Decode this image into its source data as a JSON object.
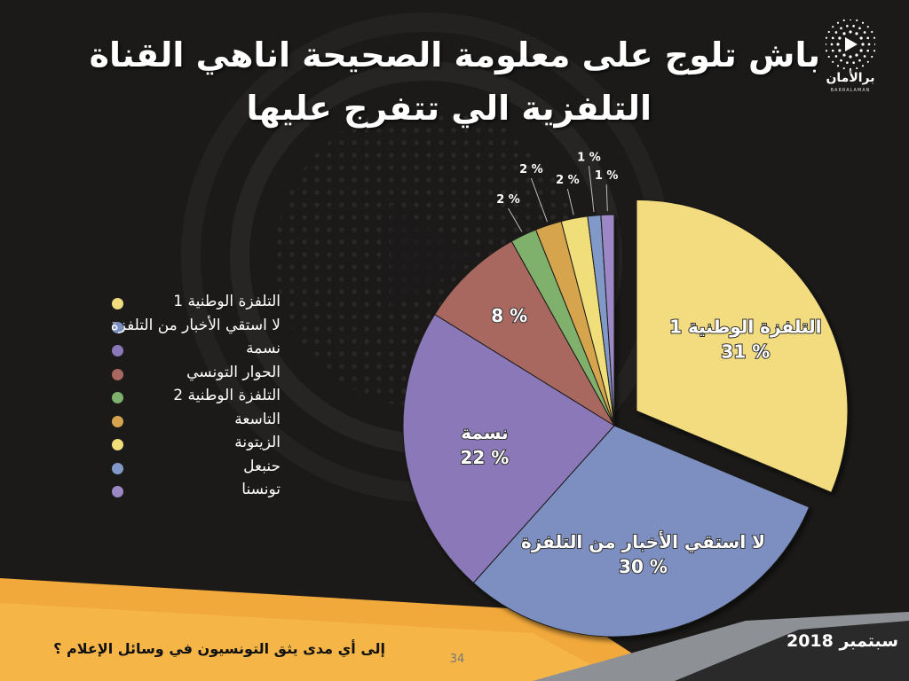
{
  "title_line_1": "باش تلوج على معلومة الصحيحة اناهي القناة",
  "title_line_2": "التلفزية الي تتفرج عليها",
  "logo": {
    "name": "برالأمان",
    "subtitle": "BARRALAMAN",
    "icon": "play-circle-dots-icon"
  },
  "footer": {
    "question": "إلى أي مدى يثق التونسيون في وسائل الإعلام ؟",
    "page_number": "34",
    "date": "سبتمبر 2018"
  },
  "colors": {
    "background": "#1b1a19",
    "footer_orange": "#f2a93b",
    "footer_gray": "#8d9196",
    "text": "#ffffff"
  },
  "chart_data": {
    "type": "pie",
    "title": "",
    "unit": "%",
    "legend_position": "left",
    "slices": [
      {
        "label": "التلفزة الوطنية 1",
        "value": 31,
        "color": "#f2dc7f",
        "value_label": "31 %",
        "show_name": true,
        "exploded": true
      },
      {
        "label": "لا استقي الأخبار من التلفزة",
        "value": 30,
        "color": "#7c8fc0",
        "value_label": "30 %",
        "show_name": true,
        "exploded": false
      },
      {
        "label": "نسمة",
        "value": 22,
        "color": "#8a78b8",
        "value_label": "22 %",
        "show_name": true,
        "exploded": false
      },
      {
        "label": "الحوار التونسي",
        "value": 8,
        "color": "#a8685f",
        "value_label": "8 %",
        "show_name": false,
        "exploded": false
      },
      {
        "label": "التلفزة الوطنية 2",
        "value": 2,
        "color": "#7fb06c",
        "value_label": "2 %",
        "show_name": false,
        "exploded": false
      },
      {
        "label": "التاسعة",
        "value": 2,
        "color": "#d6a44e",
        "value_label": "2 %",
        "show_name": false,
        "exploded": false
      },
      {
        "label": "الزيتونة",
        "value": 2,
        "color": "#f0de7a",
        "value_label": "2 %",
        "show_name": false,
        "exploded": false
      },
      {
        "label": "حنبعل",
        "value": 1,
        "color": "#8199c8",
        "value_label": "1 %",
        "show_name": false,
        "exploded": false
      },
      {
        "label": "تونسنا",
        "value": 1,
        "color": "#9b88c4",
        "value_label": "1 %",
        "show_name": false,
        "exploded": false
      }
    ]
  }
}
